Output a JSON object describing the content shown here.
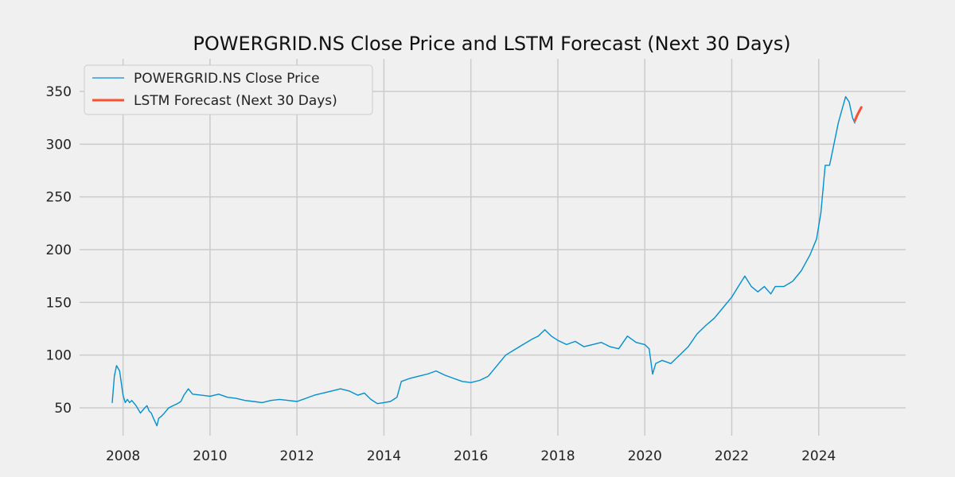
{
  "chart_data": {
    "type": "line",
    "title": "POWERGRID.NS Close Price and LSTM Forecast (Next 30 Days)",
    "xlabel": "",
    "ylabel": "",
    "xlim": [
      2007.0,
      2026.0
    ],
    "ylim": [
      20,
      380
    ],
    "x_ticks": [
      2008,
      2010,
      2012,
      2014,
      2016,
      2018,
      2020,
      2022,
      2024
    ],
    "y_ticks": [
      50,
      100,
      150,
      200,
      250,
      300,
      350
    ],
    "grid": true,
    "legend_position": "top-left",
    "series": [
      {
        "name": "POWERGRID.NS Close Price",
        "color": "#008fd5",
        "x": [
          2007.75,
          2007.8,
          2007.85,
          2007.92,
          2008.0,
          2008.05,
          2008.1,
          2008.15,
          2008.2,
          2008.3,
          2008.4,
          2008.5,
          2008.55,
          2008.6,
          2008.65,
          2008.7,
          2008.78,
          2008.82,
          2008.88,
          2008.95,
          2009.05,
          2009.15,
          2009.25,
          2009.33,
          2009.4,
          2009.5,
          2009.6,
          2009.8,
          2010.0,
          2010.2,
          2010.4,
          2010.6,
          2010.8,
          2011.0,
          2011.2,
          2011.4,
          2011.6,
          2011.8,
          2012.0,
          2012.2,
          2012.4,
          2012.6,
          2012.8,
          2013.0,
          2013.2,
          2013.4,
          2013.55,
          2013.7,
          2013.85,
          2014.0,
          2014.15,
          2014.3,
          2014.4,
          2014.6,
          2014.8,
          2015.0,
          2015.2,
          2015.4,
          2015.6,
          2015.8,
          2016.0,
          2016.2,
          2016.4,
          2016.6,
          2016.8,
          2017.0,
          2017.2,
          2017.4,
          2017.55,
          2017.7,
          2017.85,
          2018.0,
          2018.2,
          2018.4,
          2018.6,
          2018.8,
          2019.0,
          2019.2,
          2019.4,
          2019.6,
          2019.8,
          2020.0,
          2020.1,
          2020.18,
          2020.25,
          2020.4,
          2020.6,
          2020.8,
          2021.0,
          2021.2,
          2021.4,
          2021.6,
          2021.8,
          2022.0,
          2022.15,
          2022.3,
          2022.45,
          2022.6,
          2022.75,
          2022.9,
          2023.0,
          2023.2,
          2023.4,
          2023.6,
          2023.8,
          2023.95,
          2024.05,
          2024.15,
          2024.25,
          2024.35,
          2024.45,
          2024.55,
          2024.62,
          2024.7,
          2024.78,
          2024.83
        ],
        "values": [
          55,
          80,
          90,
          85,
          62,
          55,
          58,
          55,
          57,
          52,
          45,
          50,
          52,
          47,
          45,
          40,
          33,
          40,
          42,
          45,
          50,
          52,
          54,
          56,
          62,
          68,
          63,
          62,
          61,
          63,
          60,
          59,
          57,
          56,
          55,
          57,
          58,
          57,
          56,
          59,
          62,
          64,
          66,
          68,
          66,
          62,
          64,
          58,
          54,
          55,
          56,
          60,
          75,
          78,
          80,
          82,
          85,
          81,
          78,
          75,
          74,
          76,
          80,
          90,
          100,
          105,
          110,
          115,
          118,
          124,
          118,
          114,
          110,
          113,
          108,
          110,
          112,
          108,
          106,
          118,
          112,
          110,
          106,
          82,
          92,
          95,
          92,
          100,
          108,
          120,
          128,
          135,
          145,
          155,
          165,
          175,
          165,
          160,
          165,
          158,
          165,
          165,
          170,
          180,
          195,
          210,
          235,
          280,
          280,
          300,
          320,
          335,
          345,
          340,
          325,
          320
        ]
      },
      {
        "name": "LSTM Forecast (Next 30 Days)",
        "color": "#fc4f30",
        "x": [
          2024.83,
          2024.88,
          2024.93,
          2024.98
        ],
        "values": [
          322,
          327,
          331,
          335
        ]
      }
    ]
  }
}
